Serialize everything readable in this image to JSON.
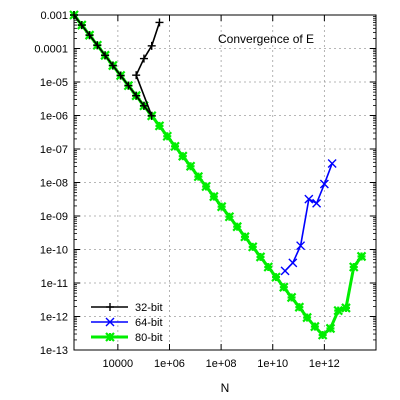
{
  "chart_data": {
    "type": "line",
    "title": "Convergence of E",
    "xlabel": "N",
    "ylabel": "",
    "x_scale": "log",
    "y_scale": "log",
    "xlim": [
      200,
      100000000000000.0
    ],
    "ylim": [
      1e-13,
      0.001
    ],
    "grid": true,
    "legend_position": "bottom-left",
    "xticks": [
      {
        "value": 10000,
        "label": "10000"
      },
      {
        "value": 1000000,
        "label": "1e+06"
      },
      {
        "value": 100000000,
        "label": "1e+08"
      },
      {
        "value": 10000000000,
        "label": "1e+10"
      },
      {
        "value": 1000000000000,
        "label": "1e+12"
      }
    ],
    "yticks": [
      {
        "value": 1e-13,
        "label": "1e-13"
      },
      {
        "value": 1e-12,
        "label": "1e-12"
      },
      {
        "value": 1e-11,
        "label": "1e-11"
      },
      {
        "value": 1e-10,
        "label": "1e-10"
      },
      {
        "value": 1e-09,
        "label": "1e-09"
      },
      {
        "value": 1e-08,
        "label": "1e-08"
      },
      {
        "value": 1e-07,
        "label": "1e-07"
      },
      {
        "value": 1e-06,
        "label": "1e-06"
      },
      {
        "value": 1e-05,
        "label": "1e-05"
      },
      {
        "value": 0.0001,
        "label": "0.0001"
      },
      {
        "value": 0.001,
        "label": "0.001"
      }
    ],
    "series": [
      {
        "name": "32-bit",
        "color": "#000000",
        "marker": "plus",
        "points": [
          [
            200,
            0.001
          ],
          [
            400,
            0.0005
          ],
          [
            800,
            0.00025
          ],
          [
            1600,
            0.000125
          ],
          [
            3200,
            6.25e-05
          ],
          [
            6400,
            3.1e-05
          ],
          [
            12800,
            1.56e-05
          ],
          [
            25600,
            7.8e-06
          ],
          [
            51200,
            3.9e-06
          ],
          [
            102400,
            1.95e-06
          ],
          [
            204800,
            9.8e-07
          ],
          [
            51200,
            1.6e-05
          ],
          [
            102400,
            5e-05
          ],
          [
            204800,
            0.00012
          ],
          [
            409600,
            0.0006
          ]
        ]
      },
      {
        "name": "64-bit",
        "color": "#0000ff",
        "marker": "cross",
        "points": [
          [
            30000000000,
            2.3e-11
          ],
          [
            60000000000,
            4e-11
          ],
          [
            120000000000,
            1.3e-10
          ],
          [
            250000000000,
            3.2e-09
          ],
          [
            500000000000,
            2.4e-09
          ],
          [
            1000000000000,
            9e-09
          ],
          [
            2000000000000,
            3.7e-08
          ]
        ]
      },
      {
        "name": "80-bit",
        "color": "#00ee00",
        "marker": "star",
        "points": [
          [
            200,
            0.001
          ],
          [
            400,
            0.0005
          ],
          [
            800,
            0.00025
          ],
          [
            1600,
            0.000125
          ],
          [
            3200,
            6.25e-05
          ],
          [
            6400,
            3.1e-05
          ],
          [
            12800,
            1.56e-05
          ],
          [
            25600,
            7.8e-06
          ],
          [
            51200,
            3.9e-06
          ],
          [
            102400,
            1.95e-06
          ],
          [
            204800,
            9.8e-07
          ],
          [
            409600,
            4.9e-07
          ],
          [
            819200,
            2.4e-07
          ],
          [
            1638400,
            1.2e-07
          ],
          [
            3276800,
            6.1e-08
          ],
          [
            6553600,
            3.05e-08
          ],
          [
            13107200,
            1.5e-08
          ],
          [
            26214400,
            7.6e-09
          ],
          [
            52428800,
            3.8e-09
          ],
          [
            104857600,
            1.9e-09
          ],
          [
            209715200,
            9.5e-10
          ],
          [
            419430400,
            4.8e-10
          ],
          [
            838860800,
            2.4e-10
          ],
          [
            1677721600,
            1.2e-10
          ],
          [
            3355443200,
            6e-11
          ],
          [
            6710886400,
            3e-11
          ],
          [
            13421772800,
            1.5e-11
          ],
          [
            26843545600,
            7.5e-12
          ],
          [
            53687091200,
            3.7e-12
          ],
          [
            107374182400,
            1.9e-12
          ],
          [
            214748364800,
            9.3e-13
          ],
          [
            429496729600,
            5e-13
          ],
          [
            858993459200,
            2.8e-13
          ],
          [
            1717986918400,
            4.4e-13
          ],
          [
            3435973836800,
            1.5e-12
          ],
          [
            6871947673600,
            1.8e-12
          ],
          [
            13743895347200,
            3e-11
          ],
          [
            27487790694400,
            6.2e-11
          ]
        ]
      }
    ]
  }
}
